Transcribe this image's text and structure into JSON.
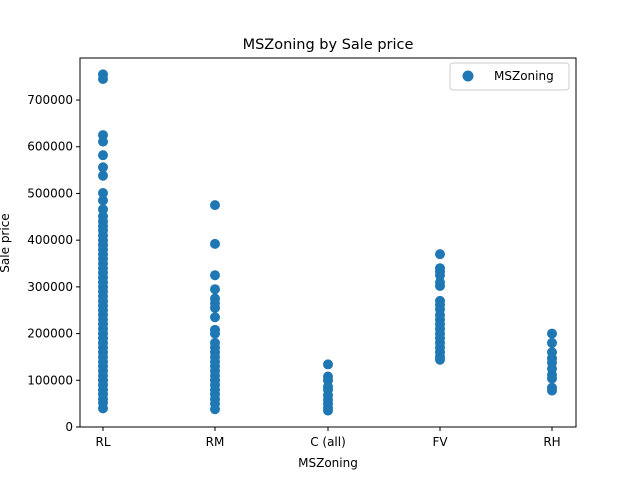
{
  "chart_data": {
    "type": "scatter",
    "title": "MSZoning by Sale price",
    "xlabel": "MSZoning",
    "ylabel": "Sale price",
    "categories": [
      "RL",
      "RM",
      "C (all)",
      "FV",
      "RH"
    ],
    "ylim": [
      0,
      790000
    ],
    "yticks": [
      0,
      100000,
      200000,
      300000,
      400000,
      500000,
      600000,
      700000
    ],
    "ytick_labels": [
      "0",
      "100000",
      "200000",
      "300000",
      "400000",
      "500000",
      "600000",
      "700000"
    ],
    "grid": false,
    "legend": {
      "position": "top-right",
      "entries": [
        "MSZoning"
      ]
    },
    "series": [
      {
        "name": "MSZoning",
        "color": "#1f77b4",
        "points": [
          {
            "x": "RL",
            "y": 755000
          },
          {
            "x": "RL",
            "y": 745000
          },
          {
            "x": "RL",
            "y": 625000
          },
          {
            "x": "RL",
            "y": 611000
          },
          {
            "x": "RL",
            "y": 582000
          },
          {
            "x": "RL",
            "y": 556000
          },
          {
            "x": "RL",
            "y": 538000
          },
          {
            "x": "RL",
            "y": 501000
          },
          {
            "x": "RL",
            "y": 485000
          },
          {
            "x": "RL",
            "y": 466000
          },
          {
            "x": "RL",
            "y": 451000
          },
          {
            "x": "RL",
            "y": 440000
          },
          {
            "x": "RL",
            "y": 430000
          },
          {
            "x": "RL",
            "y": 421000
          },
          {
            "x": "RL",
            "y": 410000
          },
          {
            "x": "RL",
            "y": 400000
          },
          {
            "x": "RL",
            "y": 390000
          },
          {
            "x": "RL",
            "y": 380000
          },
          {
            "x": "RL",
            "y": 370000
          },
          {
            "x": "RL",
            "y": 360000
          },
          {
            "x": "RL",
            "y": 350000
          },
          {
            "x": "RL",
            "y": 340000
          },
          {
            "x": "RL",
            "y": 330000
          },
          {
            "x": "RL",
            "y": 320000
          },
          {
            "x": "RL",
            "y": 310000
          },
          {
            "x": "RL",
            "y": 300000
          },
          {
            "x": "RL",
            "y": 290000
          },
          {
            "x": "RL",
            "y": 280000
          },
          {
            "x": "RL",
            "y": 270000
          },
          {
            "x": "RL",
            "y": 260000
          },
          {
            "x": "RL",
            "y": 250000
          },
          {
            "x": "RL",
            "y": 240000
          },
          {
            "x": "RL",
            "y": 230000
          },
          {
            "x": "RL",
            "y": 220000
          },
          {
            "x": "RL",
            "y": 210000
          },
          {
            "x": "RL",
            "y": 200000
          },
          {
            "x": "RL",
            "y": 190000
          },
          {
            "x": "RL",
            "y": 180000
          },
          {
            "x": "RL",
            "y": 170000
          },
          {
            "x": "RL",
            "y": 160000
          },
          {
            "x": "RL",
            "y": 150000
          },
          {
            "x": "RL",
            "y": 140000
          },
          {
            "x": "RL",
            "y": 130000
          },
          {
            "x": "RL",
            "y": 120000
          },
          {
            "x": "RL",
            "y": 110000
          },
          {
            "x": "RL",
            "y": 100000
          },
          {
            "x": "RL",
            "y": 90000
          },
          {
            "x": "RL",
            "y": 80000
          },
          {
            "x": "RL",
            "y": 70000
          },
          {
            "x": "RL",
            "y": 60000
          },
          {
            "x": "RL",
            "y": 52000
          },
          {
            "x": "RL",
            "y": 40000
          },
          {
            "x": "RM",
            "y": 475000
          },
          {
            "x": "RM",
            "y": 392000
          },
          {
            "x": "RM",
            "y": 325000
          },
          {
            "x": "RM",
            "y": 295000
          },
          {
            "x": "RM",
            "y": 275000
          },
          {
            "x": "RM",
            "y": 265000
          },
          {
            "x": "RM",
            "y": 255000
          },
          {
            "x": "RM",
            "y": 235000
          },
          {
            "x": "RM",
            "y": 208000
          },
          {
            "x": "RM",
            "y": 200000
          },
          {
            "x": "RM",
            "y": 180000
          },
          {
            "x": "RM",
            "y": 170000
          },
          {
            "x": "RM",
            "y": 160000
          },
          {
            "x": "RM",
            "y": 150000
          },
          {
            "x": "RM",
            "y": 140000
          },
          {
            "x": "RM",
            "y": 130000
          },
          {
            "x": "RM",
            "y": 120000
          },
          {
            "x": "RM",
            "y": 110000
          },
          {
            "x": "RM",
            "y": 100000
          },
          {
            "x": "RM",
            "y": 90000
          },
          {
            "x": "RM",
            "y": 80000
          },
          {
            "x": "RM",
            "y": 70000
          },
          {
            "x": "RM",
            "y": 60000
          },
          {
            "x": "RM",
            "y": 50000
          },
          {
            "x": "RM",
            "y": 38000
          },
          {
            "x": "C (all)",
            "y": 134000
          },
          {
            "x": "C (all)",
            "y": 108000
          },
          {
            "x": "C (all)",
            "y": 100000
          },
          {
            "x": "C (all)",
            "y": 86000
          },
          {
            "x": "C (all)",
            "y": 80000
          },
          {
            "x": "C (all)",
            "y": 68000
          },
          {
            "x": "C (all)",
            "y": 58000
          },
          {
            "x": "C (all)",
            "y": 50000
          },
          {
            "x": "C (all)",
            "y": 41000
          },
          {
            "x": "C (all)",
            "y": 35000
          },
          {
            "x": "FV",
            "y": 370000
          },
          {
            "x": "FV",
            "y": 340000
          },
          {
            "x": "FV",
            "y": 333000
          },
          {
            "x": "FV",
            "y": 325000
          },
          {
            "x": "FV",
            "y": 310000
          },
          {
            "x": "FV",
            "y": 302000
          },
          {
            "x": "FV",
            "y": 270000
          },
          {
            "x": "FV",
            "y": 262000
          },
          {
            "x": "FV",
            "y": 252000
          },
          {
            "x": "FV",
            "y": 240000
          },
          {
            "x": "FV",
            "y": 230000
          },
          {
            "x": "FV",
            "y": 220000
          },
          {
            "x": "FV",
            "y": 210000
          },
          {
            "x": "FV",
            "y": 200000
          },
          {
            "x": "FV",
            "y": 190000
          },
          {
            "x": "FV",
            "y": 180000
          },
          {
            "x": "FV",
            "y": 170000
          },
          {
            "x": "FV",
            "y": 160000
          },
          {
            "x": "FV",
            "y": 150000
          },
          {
            "x": "FV",
            "y": 144000
          },
          {
            "x": "RH",
            "y": 200000
          },
          {
            "x": "RH",
            "y": 180000
          },
          {
            "x": "RH",
            "y": 160000
          },
          {
            "x": "RH",
            "y": 147000
          },
          {
            "x": "RH",
            "y": 138000
          },
          {
            "x": "RH",
            "y": 125000
          },
          {
            "x": "RH",
            "y": 112000
          },
          {
            "x": "RH",
            "y": 104000
          },
          {
            "x": "RH",
            "y": 84000
          },
          {
            "x": "RH",
            "y": 78000
          }
        ]
      }
    ]
  }
}
